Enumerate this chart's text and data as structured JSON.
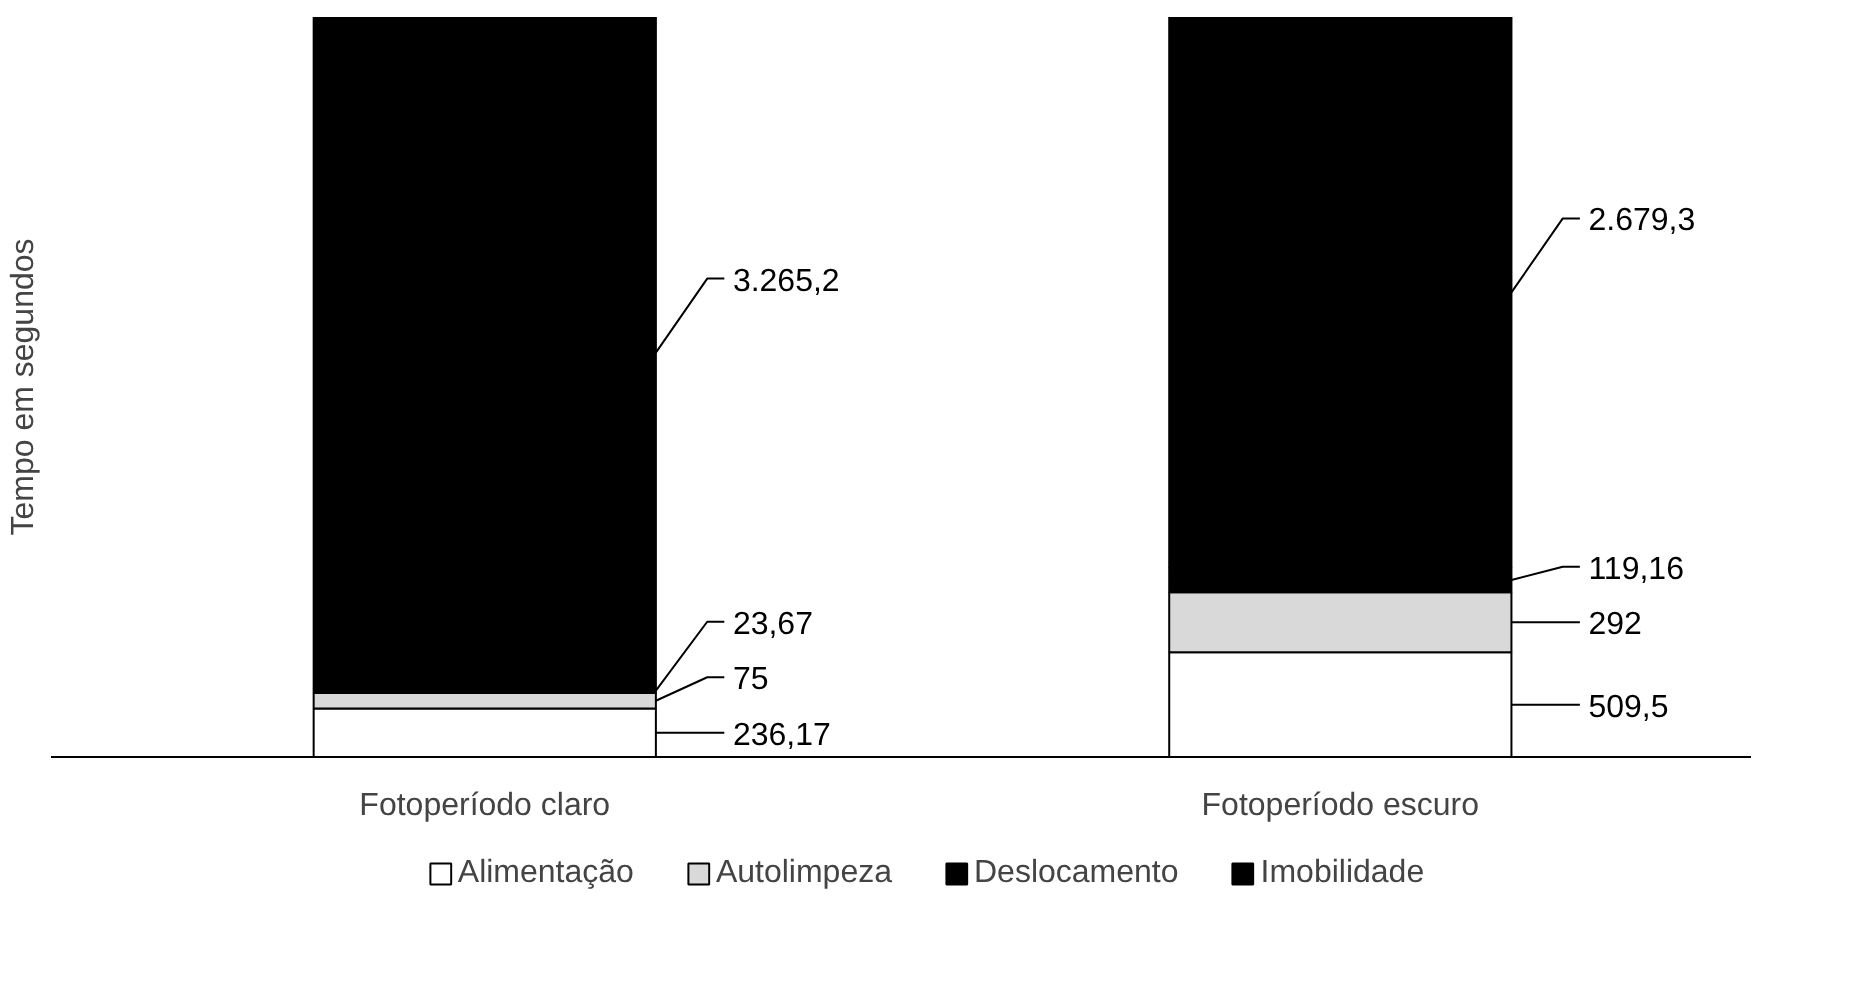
{
  "chart_data": {
    "type": "bar",
    "stacked": true,
    "ylabel": "Tempo em segundos",
    "categories": [
      "Fotoperíodo claro",
      "Fotoperíodo escuro"
    ],
    "ylim": [
      0,
      3600
    ],
    "tick_labels": "x",
    "legend": "bottom",
    "series": [
      {
        "name": "Alimentação",
        "color": "#ffffff",
        "values": [
          236.17,
          509.5
        ],
        "value_labels": [
          "236,17",
          "509,5"
        ]
      },
      {
        "name": "Autolimpeza",
        "color": "#d9d9d9",
        "values": [
          75,
          292
        ],
        "value_labels": [
          "75",
          "292"
        ]
      },
      {
        "name": "Deslocamento",
        "color": "#000000",
        "values": [
          23.67,
          119.16
        ],
        "value_labels": [
          "23,67",
          "119,16"
        ]
      },
      {
        "name": "Imobilidade",
        "color": "#000000",
        "values": [
          3265.2,
          2679.3
        ],
        "value_labels": [
          "3.265,2",
          "2.679,3"
        ]
      }
    ]
  }
}
